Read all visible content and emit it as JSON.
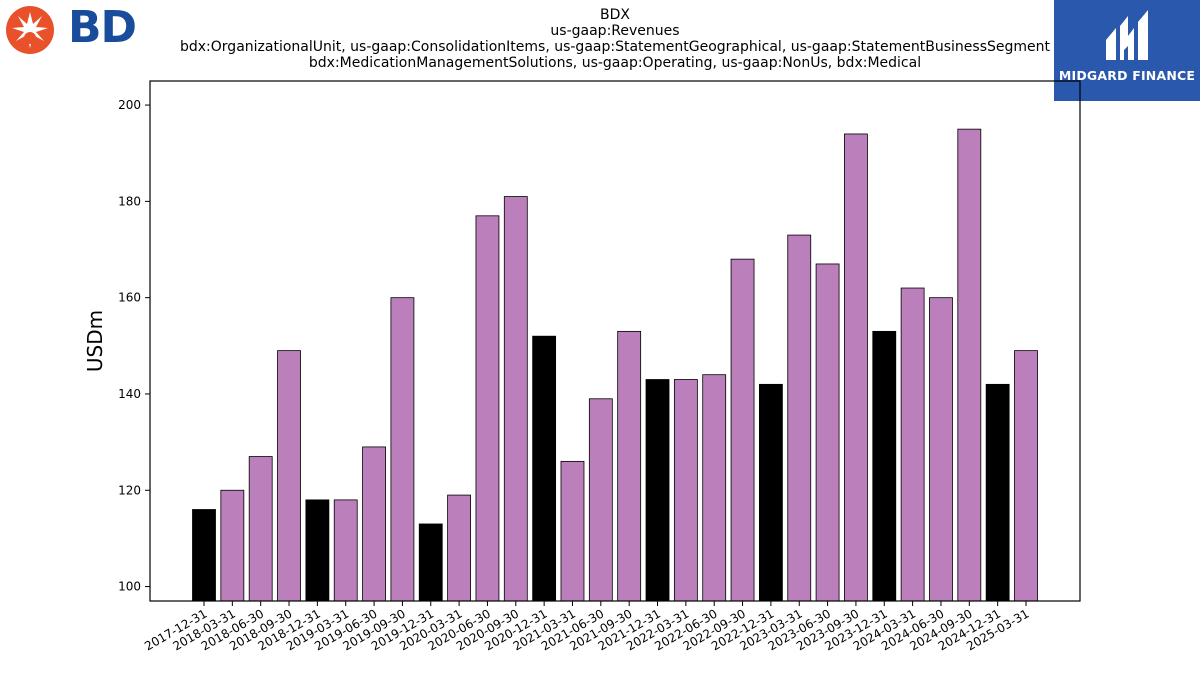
{
  "branding": {
    "company_logo_text": "BD",
    "watermark_text": "MIDGARD FINANCE"
  },
  "chart_data": {
    "type": "bar",
    "title_lines": [
      "BDX",
      "us-gaap:Revenues",
      "bdx:OrganizationalUnit, us-gaap:ConsolidationItems, us-gaap:StatementGeographical, us-gaap:StatementBusinessSegments",
      "bdx:MedicationManagementSolutions, us-gaap:Operating, us-gaap:NonUs, bdx:Medical"
    ],
    "xlabel": "",
    "ylabel": "USDm",
    "ylim": [
      97,
      205
    ],
    "yticks": [
      100,
      120,
      140,
      160,
      180,
      200
    ],
    "grid": false,
    "colors": {
      "quarter": "#bb7fbc",
      "fiscal_year_end": "#000000"
    },
    "categories": [
      "2017-12-31",
      "2018-03-31",
      "2018-06-30",
      "2018-09-30",
      "2018-12-31",
      "2019-03-31",
      "2019-06-30",
      "2019-09-30",
      "2019-12-31",
      "2020-03-31",
      "2020-06-30",
      "2020-09-30",
      "2020-12-31",
      "2021-03-31",
      "2021-06-30",
      "2021-09-30",
      "2021-12-31",
      "2022-03-31",
      "2022-06-30",
      "2022-09-30",
      "2022-12-31",
      "2023-03-31",
      "2023-06-30",
      "2023-09-30",
      "2023-12-31",
      "2024-03-31",
      "2024-06-30",
      "2024-09-30",
      "2024-12-31",
      "2025-03-31"
    ],
    "values": [
      116,
      120,
      127,
      149,
      118,
      118,
      129,
      160,
      113,
      119,
      177,
      181,
      152,
      126,
      139,
      153,
      143,
      143,
      144,
      168,
      142,
      173,
      167,
      194,
      153,
      162,
      160,
      195,
      142,
      149
    ],
    "highlight": [
      true,
      false,
      false,
      false,
      true,
      false,
      false,
      false,
      true,
      false,
      false,
      false,
      true,
      false,
      false,
      false,
      true,
      false,
      false,
      false,
      true,
      false,
      false,
      false,
      true,
      false,
      false,
      false,
      true,
      false
    ]
  }
}
